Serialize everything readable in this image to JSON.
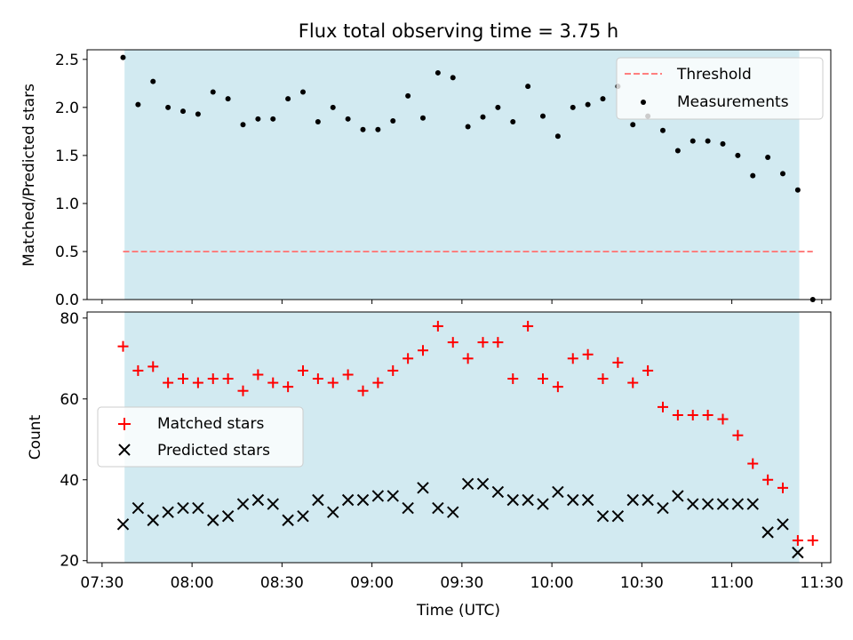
{
  "chart_data": [
    {
      "type": "scatter",
      "title": "Flux total observing time = 3.75 h",
      "xlabel": "",
      "ylabel": "Matched/Predicted stars",
      "ylim": [
        0,
        2.6
      ],
      "yticks": [
        "0.0",
        "0.5",
        "1.0",
        "1.5",
        "2.0",
        "2.5"
      ],
      "xlim_minutes": [
        445,
        693
      ],
      "shaded_span_minutes": [
        457.5,
        682.5
      ],
      "shade_color": "#add8e6",
      "legend_position": "top-right",
      "threshold": {
        "name": "Threshold",
        "value": 0.5,
        "color": "#ff7f7f",
        "x_start": "07:37",
        "x_end": "11:27"
      },
      "series": [
        {
          "name": "Measurements",
          "color": "#000000",
          "x": [
            "07:37",
            "07:42",
            "07:47",
            "07:52",
            "07:57",
            "08:02",
            "08:07",
            "08:12",
            "08:17",
            "08:22",
            "08:27",
            "08:32",
            "08:37",
            "08:42",
            "08:47",
            "08:52",
            "08:57",
            "09:02",
            "09:07",
            "09:12",
            "09:17",
            "09:22",
            "09:27",
            "09:32",
            "09:37",
            "09:42",
            "09:47",
            "09:52",
            "09:57",
            "10:02",
            "10:07",
            "10:12",
            "10:17",
            "10:22",
            "10:27",
            "10:32",
            "10:37",
            "10:42",
            "10:47",
            "10:52",
            "10:57",
            "11:02",
            "11:07",
            "11:12",
            "11:17",
            "11:22",
            "11:27"
          ],
          "values": [
            2.52,
            2.03,
            2.27,
            2.0,
            1.96,
            1.93,
            2.16,
            2.09,
            1.82,
            1.88,
            1.88,
            2.09,
            2.16,
            1.85,
            2.0,
            1.88,
            1.77,
            1.77,
            1.86,
            2.12,
            1.89,
            2.36,
            2.31,
            1.8,
            1.9,
            2.0,
            1.85,
            2.22,
            1.91,
            1.7,
            2.0,
            2.03,
            2.09,
            2.22,
            1.82,
            1.91,
            1.76,
            1.55,
            1.65,
            1.65,
            1.62,
            1.5,
            1.29,
            1.48,
            1.31,
            1.14,
            0.0
          ]
        }
      ]
    },
    {
      "type": "scatter",
      "title": "",
      "xlabel": "Time (UTC)",
      "ylabel": "Count",
      "ylim": [
        19.5,
        81.5
      ],
      "yticks": [
        "20",
        "40",
        "60",
        "80"
      ],
      "xticks": [
        "07:30",
        "08:00",
        "08:30",
        "09:00",
        "09:30",
        "10:00",
        "10:30",
        "11:00",
        "11:30"
      ],
      "xtick_minutes": [
        450,
        480,
        510,
        540,
        570,
        600,
        630,
        660,
        690
      ],
      "xlim_minutes": [
        445,
        693
      ],
      "shaded_span_minutes": [
        457.5,
        682.5
      ],
      "shade_color": "#add8e6",
      "legend_position": "center-left",
      "series": [
        {
          "name": "Matched stars",
          "marker": "+",
          "color": "#ff0000",
          "x": [
            "07:37",
            "07:42",
            "07:47",
            "07:52",
            "07:57",
            "08:02",
            "08:07",
            "08:12",
            "08:17",
            "08:22",
            "08:27",
            "08:32",
            "08:37",
            "08:42",
            "08:47",
            "08:52",
            "08:57",
            "09:02",
            "09:07",
            "09:12",
            "09:17",
            "09:22",
            "09:27",
            "09:32",
            "09:37",
            "09:42",
            "09:47",
            "09:52",
            "09:57",
            "10:02",
            "10:07",
            "10:12",
            "10:17",
            "10:22",
            "10:27",
            "10:32",
            "10:37",
            "10:42",
            "10:47",
            "10:52",
            "10:57",
            "11:02",
            "11:07",
            "11:12",
            "11:17",
            "11:22",
            "11:27"
          ],
          "values": [
            73,
            67,
            68,
            64,
            65,
            64,
            65,
            65,
            62,
            66,
            64,
            63,
            67,
            65,
            64,
            66,
            62,
            64,
            67,
            70,
            72,
            78,
            74,
            70,
            74,
            74,
            65,
            78,
            65,
            63,
            70,
            71,
            65,
            69,
            64,
            67,
            58,
            56,
            56,
            56,
            55,
            51,
            44,
            40,
            38,
            25,
            25
          ]
        },
        {
          "name": "Predicted stars",
          "marker": "x",
          "color": "#000000",
          "x": [
            "07:37",
            "07:42",
            "07:47",
            "07:52",
            "07:57",
            "08:02",
            "08:07",
            "08:12",
            "08:17",
            "08:22",
            "08:27",
            "08:32",
            "08:37",
            "08:42",
            "08:47",
            "08:52",
            "08:57",
            "09:02",
            "09:07",
            "09:12",
            "09:17",
            "09:22",
            "09:27",
            "09:32",
            "09:37",
            "09:42",
            "09:47",
            "09:52",
            "09:57",
            "10:02",
            "10:07",
            "10:12",
            "10:17",
            "10:22",
            "10:27",
            "10:32",
            "10:37",
            "10:42",
            "10:47",
            "10:52",
            "10:57",
            "11:02",
            "11:07",
            "11:12",
            "11:17",
            "11:22"
          ],
          "values": [
            29,
            33,
            30,
            32,
            33,
            33,
            30,
            31,
            34,
            35,
            34,
            30,
            31,
            35,
            32,
            35,
            35,
            36,
            36,
            33,
            38,
            33,
            32,
            39,
            39,
            37,
            35,
            35,
            34,
            37,
            35,
            35,
            31,
            31,
            35,
            35,
            33,
            36,
            34,
            34,
            34,
            34,
            34,
            27,
            29,
            22
          ]
        }
      ]
    }
  ]
}
